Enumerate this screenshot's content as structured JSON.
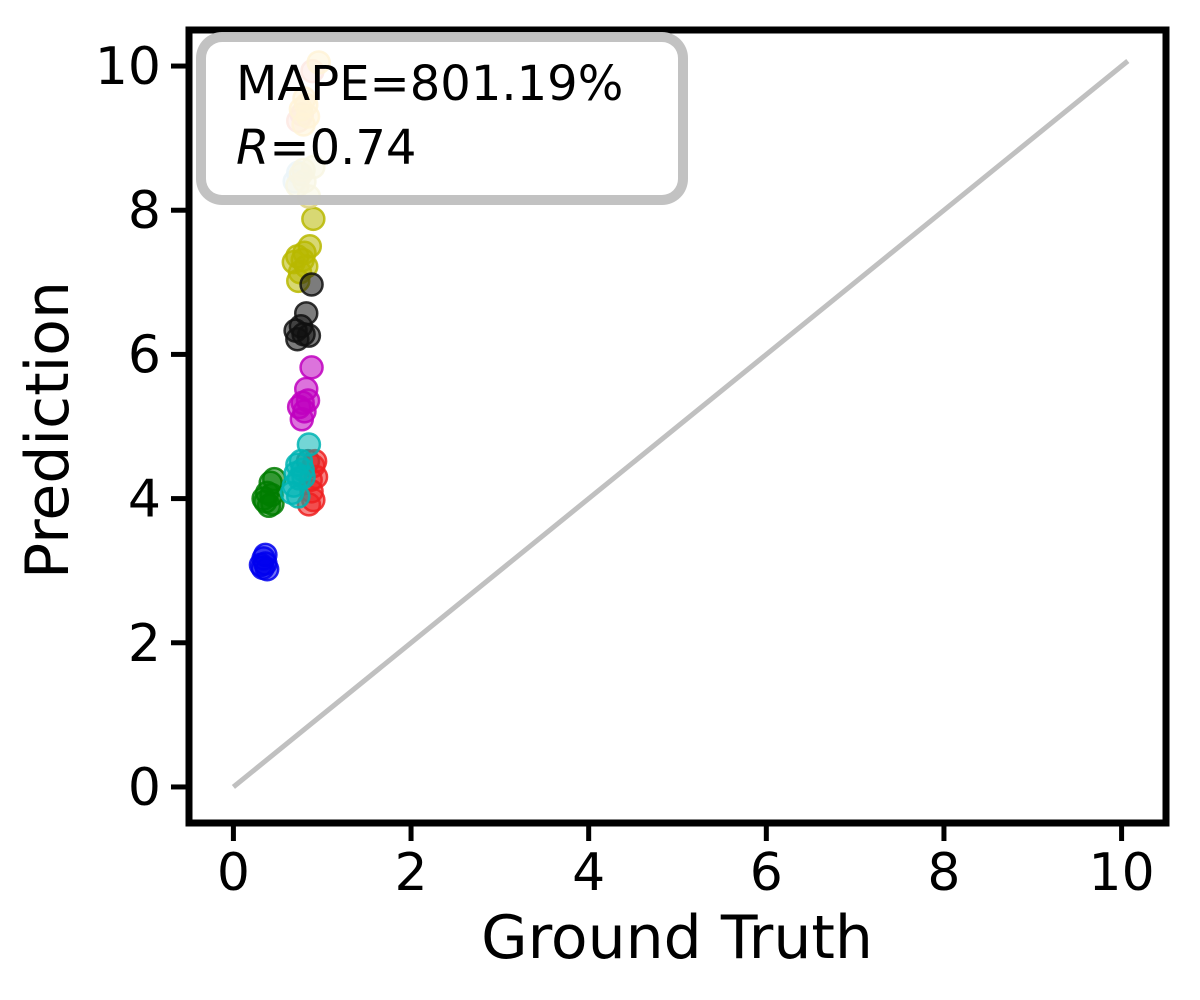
{
  "chart_data": {
    "type": "scatter",
    "title": "",
    "xlabel": "Ground Truth",
    "ylabel": "Prediction",
    "xlim": [
      -0.5,
      10.5
    ],
    "ylim": [
      -0.5,
      10.5
    ],
    "x_ticks": [
      "0",
      "2",
      "4",
      "6",
      "8",
      "10"
    ],
    "x_tick_values": [
      0,
      2,
      4,
      6,
      8,
      10
    ],
    "y_ticks": [
      "0",
      "2",
      "4",
      "6",
      "8",
      "10"
    ],
    "y_tick_values": [
      0,
      2,
      4,
      6,
      8,
      10
    ],
    "grid": "off",
    "legend": "none",
    "annotation": {
      "line1": "MAPE=801.19%",
      "r_label": "R",
      "r_value": "=0.74",
      "box_fill": "#ffffff",
      "box_edge": "#bbbbbb"
    },
    "identity_line": {
      "x": [
        0,
        10.07
      ],
      "y": [
        0,
        10.07
      ],
      "color": "#c0c0c0"
    },
    "marker": {
      "radius_px": 11,
      "fill_alpha": 0.55,
      "edge_alpha": 0.85,
      "edge_width": 2.5
    },
    "series": [
      {
        "name": "cluster-blue",
        "color": "#0000ee",
        "points": [
          [
            0.33,
            3.04
          ],
          [
            0.36,
            3.1
          ],
          [
            0.34,
            3.17
          ],
          [
            0.38,
            3.02
          ],
          [
            0.36,
            3.22
          ],
          [
            0.31,
            3.08
          ]
        ]
      },
      {
        "name": "cluster-green",
        "color": "#007d00",
        "points": [
          [
            0.46,
            4.27
          ],
          [
            0.42,
            4.22
          ],
          [
            0.38,
            4.08
          ],
          [
            0.43,
            4.05
          ],
          [
            0.36,
            3.96
          ],
          [
            0.4,
            3.9
          ],
          [
            0.34,
            4.0
          ],
          [
            0.44,
            3.93
          ]
        ]
      },
      {
        "name": "cluster-gray",
        "color": "#555555",
        "points": [
          [
            0.84,
            4.52
          ]
        ]
      },
      {
        "name": "cluster-red",
        "color": "#ee2020",
        "points": [
          [
            0.9,
            4.45
          ],
          [
            0.93,
            4.3
          ],
          [
            0.88,
            4.1
          ],
          [
            0.85,
            3.92
          ],
          [
            0.9,
            3.98
          ],
          [
            0.92,
            4.52
          ],
          [
            0.87,
            4.26
          ]
        ]
      },
      {
        "name": "cluster-cyan",
        "color": "#00b4b4",
        "points": [
          [
            0.85,
            4.75
          ],
          [
            0.72,
            4.47
          ],
          [
            0.78,
            4.4
          ],
          [
            0.74,
            4.28
          ],
          [
            0.68,
            4.18
          ],
          [
            0.66,
            4.08
          ],
          [
            0.73,
            4.03
          ],
          [
            0.79,
            4.3
          ],
          [
            0.76,
            4.52
          ],
          [
            0.7,
            4.35
          ]
        ]
      },
      {
        "name": "cluster-magenta",
        "color": "#bf00bf",
        "points": [
          [
            0.88,
            5.82
          ],
          [
            0.82,
            5.52
          ],
          [
            0.78,
            5.33
          ],
          [
            0.74,
            5.27
          ],
          [
            0.8,
            5.21
          ],
          [
            0.84,
            5.36
          ],
          [
            0.77,
            5.1
          ]
        ]
      },
      {
        "name": "cluster-olive",
        "color": "#b8b800",
        "points": [
          [
            0.9,
            7.88
          ],
          [
            0.86,
            7.5
          ],
          [
            0.72,
            7.36
          ],
          [
            0.78,
            7.31
          ],
          [
            0.82,
            7.22
          ],
          [
            0.75,
            7.14
          ],
          [
            0.8,
            7.41
          ],
          [
            0.73,
            7.02
          ],
          [
            0.68,
            7.28
          ]
        ]
      },
      {
        "name": "cluster-black",
        "color": "#111111",
        "points": [
          [
            0.82,
            6.57
          ],
          [
            0.88,
            6.97
          ],
          [
            0.7,
            6.33
          ],
          [
            0.76,
            6.39
          ],
          [
            0.79,
            6.28
          ],
          [
            0.72,
            6.21
          ],
          [
            0.85,
            6.26
          ]
        ]
      },
      {
        "name": "cluster-lightblue",
        "color": "#a6cfe0",
        "points": [
          [
            0.69,
            8.4
          ],
          [
            0.73,
            8.52
          ]
        ]
      },
      {
        "name": "cluster-khaki",
        "color": "#ddd27e",
        "points": [
          [
            0.9,
            8.6
          ],
          [
            0.76,
            8.5
          ],
          [
            0.8,
            8.4
          ],
          [
            0.72,
            8.34
          ],
          [
            0.85,
            8.19
          ],
          [
            0.79,
            8.56
          ]
        ]
      },
      {
        "name": "cluster-salmon",
        "color": "#f2997f",
        "points": [
          [
            0.73,
            9.24
          ],
          [
            0.89,
            9.93
          ],
          [
            0.77,
            9.33
          ]
        ]
      },
      {
        "name": "cluster-gold",
        "color": "#fcc84a",
        "points": [
          [
            0.96,
            10.05
          ],
          [
            0.8,
            9.55
          ],
          [
            0.76,
            9.4
          ],
          [
            0.84,
            9.3
          ],
          [
            0.79,
            9.19
          ],
          [
            0.82,
            9.46
          ]
        ]
      }
    ]
  }
}
